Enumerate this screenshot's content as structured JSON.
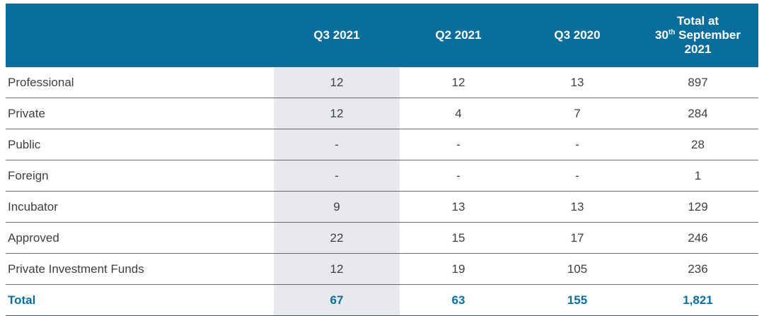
{
  "theme": {
    "header_bg": "#0a6e9c",
    "header_text": "#ffffff",
    "highlight_bg": "#e7e9ef",
    "row_divider": "#65696e",
    "bottom_border": "#464e56",
    "body_text": "#3c4043",
    "total_text": "#0a6e9c"
  },
  "table": {
    "header": {
      "label": "",
      "q3_2021": "Q3 2021",
      "q2_2021": "Q2 2021",
      "q3_2020": "Q3 2020",
      "total_line1": "Total at",
      "total_day": "30",
      "total_ordinal": "th",
      "total_month": " September",
      "total_year": "2021"
    },
    "rows": [
      {
        "label": "Professional",
        "q3_2021": "12",
        "q2_2021": "12",
        "q3_2020": "13",
        "total": "897"
      },
      {
        "label": "Private",
        "q3_2021": "12",
        "q2_2021": "4",
        "q3_2020": "7",
        "total": "284"
      },
      {
        "label": "Public",
        "q3_2021": "-",
        "q2_2021": "-",
        "q3_2020": "-",
        "total": "28"
      },
      {
        "label": "Foreign",
        "q3_2021": "-",
        "q2_2021": "-",
        "q3_2020": "-",
        "total": "1"
      },
      {
        "label": "Incubator",
        "q3_2021": "9",
        "q2_2021": "13",
        "q3_2020": "13",
        "total": "129"
      },
      {
        "label": "Approved",
        "q3_2021": "22",
        "q2_2021": "15",
        "q3_2020": "17",
        "total": "246"
      },
      {
        "label": "Private Investment Funds",
        "q3_2021": "12",
        "q2_2021": "19",
        "q3_2020": "105",
        "total": "236"
      }
    ],
    "total_row": {
      "label": "Total",
      "q3_2021": "67",
      "q2_2021": "63",
      "q3_2020": "155",
      "total": "1,821"
    }
  }
}
